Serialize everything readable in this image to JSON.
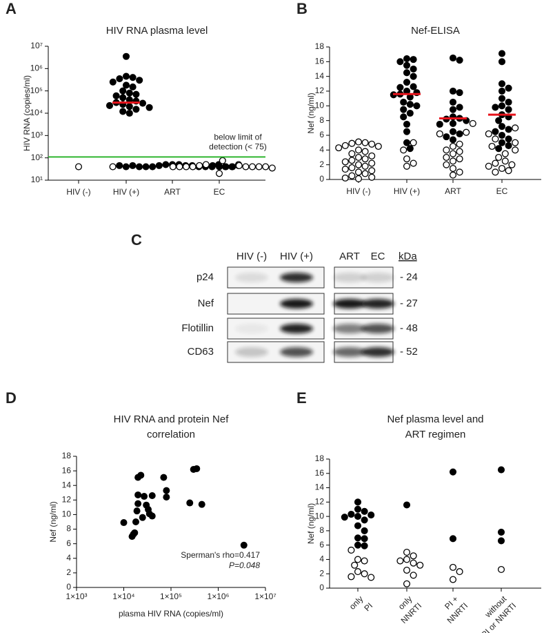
{
  "chart_data": [
    {
      "type": "strip",
      "panel": "A",
      "title": "HIV RNA plasma level",
      "ylabel": "HIV RNA (copies/ml)",
      "categories": [
        "HIV (-)",
        "HIV (+)",
        "ART",
        "EC"
      ],
      "log_y": true,
      "ylim": [
        10,
        10000000
      ],
      "yticks": [
        {
          "value": 10,
          "label": "10¹"
        },
        {
          "value": 100,
          "label": "10²"
        },
        {
          "value": 1000,
          "label": "10³"
        },
        {
          "value": 10000,
          "label": "10⁴"
        },
        {
          "value": 100000,
          "label": "10⁵"
        },
        {
          "value": 1000000,
          "label": "10⁶"
        },
        {
          "value": 10000000,
          "label": "10⁷"
        }
      ],
      "series": [
        {
          "color": "#000000",
          "values": [
            [],
            [
              3500000,
              450000,
              400000,
              350000,
              300000,
              250000,
              180000,
              150000,
              100000,
              80000,
              70000,
              60000,
              50000,
              40000,
              35000,
              30000,
              28000,
              25000,
              22000,
              20000,
              18000,
              15000,
              12000,
              10000
            ],
            [
              50,
              50,
              50,
              45,
              45,
              45,
              40,
              40,
              40,
              40,
              40,
              40,
              45,
              50,
              40,
              40,
              45,
              40
            ],
            [
              40,
              40,
              45,
              40
            ]
          ]
        },
        {
          "color": "#ffffff",
          "values": [
            [
              40
            ],
            [],
            [
              40,
              50,
              45
            ],
            [
              75,
              50,
              45,
              45,
              40,
              40,
              40,
              40,
              40,
              40,
              40,
              40,
              20,
              35
            ]
          ]
        }
      ],
      "medians": [
        null,
        30000,
        null,
        null
      ],
      "median_color": "#e8141c",
      "threshold": 110,
      "threshold_color": "#2db52d",
      "annotation": [
        "below limit of",
        "detection (< 75)"
      ]
    },
    {
      "type": "strip",
      "panel": "B",
      "title": "Nef-ELISA",
      "ylabel": "Nef (ng/ml)",
      "categories": [
        "HIV (-)",
        "HIV (+)",
        "ART",
        "EC"
      ],
      "ylim": [
        0,
        18
      ],
      "yticks": [
        0,
        2,
        4,
        6,
        8,
        10,
        12,
        14,
        16,
        18
      ],
      "series": [
        {
          "color": "#000000",
          "values": [
            [],
            [
              16.4,
              16.3,
              16.0,
              15.5,
              15.0,
              14.5,
              14.0,
              13.2,
              12.6,
              12.5,
              12.0,
              11.8,
              11.6,
              11.5,
              11.2,
              10.5,
              10.2,
              10.0,
              9.5,
              9.0,
              8.5,
              7.5,
              6.5,
              5.0,
              4.2
            ],
            [
              16.5,
              16.2,
              12.0,
              11.8,
              10.5,
              9.8,
              9.5,
              8.5,
              8.3,
              8.2,
              8.0,
              7.6,
              7.5,
              6.5,
              6.2,
              5.8,
              5.4
            ],
            [
              17.1,
              16.0,
              13.0,
              12.4,
              12.0,
              11.0,
              10.5,
              10.0,
              9.8,
              9.5,
              8.8,
              8.5,
              8.0,
              7.2,
              6.8,
              6.5,
              6.0,
              5.5,
              5.0,
              4.6,
              4.2
            ]
          ]
        },
        {
          "color": "#ffffff",
          "values": [
            [
              5.1,
              5.0,
              4.9,
              4.8,
              4.6,
              4.5,
              4.3,
              4.0,
              3.8,
              3.5,
              3.2,
              3.0,
              2.8,
              2.6,
              2.4,
              2.2,
              2.0,
              1.8,
              1.6,
              1.4,
              1.2,
              1.0,
              0.8,
              0.5,
              0.3,
              0.2,
              0.1
            ],
            [
              5.0,
              4.0,
              2.8,
              2.2,
              1.8
            ],
            [
              7.6,
              6.4,
              6.2,
              4.8,
              4.5,
              4.0,
              3.8,
              3.5,
              3.0,
              2.8,
              2.5,
              2.0,
              1.5,
              1.0,
              0.6
            ],
            [
              7.0,
              6.2,
              5.5,
              5.0,
              4.5,
              4.0,
              3.5,
              3.0,
              2.5,
              2.2,
              2.0,
              1.8,
              1.5,
              1.2,
              1.0
            ]
          ]
        }
      ],
      "medians": [
        null,
        11.6,
        8.3,
        8.8
      ],
      "median_color": "#e8141c"
    },
    {
      "type": "scatter",
      "panel": "D",
      "title": [
        "HIV RNA and protein Nef",
        "correlation"
      ],
      "xlabel": "plasma HIV RNA (copies/ml)",
      "ylabel": "Nef (ng/ml)",
      "log_x": true,
      "xlim": [
        1000,
        10000000
      ],
      "xticks": [
        {
          "value": 1000,
          "label": "1×10³"
        },
        {
          "value": 10000,
          "label": "1×10⁴"
        },
        {
          "value": 100000,
          "label": "1×10⁵"
        },
        {
          "value": 1000000,
          "label": "1×10⁶"
        },
        {
          "value": 10000000,
          "label": "1×10⁷"
        }
      ],
      "ylim": [
        0,
        18
      ],
      "yticks": [
        0,
        2,
        4,
        6,
        8,
        10,
        12,
        14,
        16,
        18
      ],
      "color": "#000000",
      "x": [
        10000,
        15000,
        16000,
        17000,
        18000,
        19000,
        20000,
        20000,
        20000,
        23000,
        25000,
        27000,
        30000,
        33000,
        35000,
        40000,
        40000,
        70000,
        80000,
        80000,
        250000,
        300000,
        350000,
        450000,
        3500000
      ],
      "y": [
        8.9,
        7.0,
        7.3,
        7.5,
        9.0,
        10.5,
        11.5,
        12.7,
        15.1,
        15.4,
        9.6,
        12.5,
        11.3,
        10.7,
        10.1,
        12.6,
        9.8,
        15.1,
        13.3,
        12.4,
        11.6,
        16.2,
        16.3,
        11.4,
        5.8
      ],
      "annotation": [
        "Sperman's  rho=0.417",
        "P=0.048"
      ],
      "annotation_color": "#e8141c"
    },
    {
      "type": "strip",
      "panel": "E",
      "title": [
        "Nef plasma level and",
        "ART regimen"
      ],
      "ylabel": "Nef (ng/ml)",
      "categories": [
        [
          "only",
          "PI"
        ],
        [
          "only",
          "NNRTI"
        ],
        [
          "PI +",
          "NNRTI"
        ],
        [
          "without",
          "PI or NNRTI"
        ]
      ],
      "ylim": [
        0,
        18
      ],
      "yticks": [
        0,
        2,
        4,
        6,
        8,
        10,
        12,
        14,
        16,
        18
      ],
      "series": [
        {
          "color": "#000000",
          "values": [
            [
              12.0,
              11.0,
              10.7,
              10.3,
              10.2,
              10.0,
              9.9,
              9.5,
              8.7,
              8.0,
              7.0,
              6.9,
              6.0,
              5.9
            ],
            [
              11.6
            ],
            [
              16.2,
              6.9
            ],
            [
              16.5,
              7.8,
              6.6
            ]
          ]
        },
        {
          "color": "#ffffff",
          "values": [
            [
              5.3,
              4.0,
              3.8,
              3.2,
              2.3,
              2.0,
              1.6,
              1.5
            ],
            [
              5.0,
              4.5,
              4.0,
              3.8,
              3.5,
              3.2,
              2.5,
              1.8,
              0.6
            ],
            [
              2.9,
              2.3,
              1.2
            ],
            [
              2.6
            ]
          ]
        }
      ]
    }
  ],
  "blot": {
    "panel": "C",
    "lanes": [
      "HIV (-)",
      "HIV (+)",
      "ART",
      "EC"
    ],
    "unit": "kDa",
    "rows": [
      {
        "label": "p24",
        "kda": "- 24"
      },
      {
        "label": "Nef",
        "kda": "- 27"
      },
      {
        "label": "Flotillin",
        "kda": "- 48"
      },
      {
        "label": "CD63",
        "kda": "- 52"
      }
    ]
  }
}
